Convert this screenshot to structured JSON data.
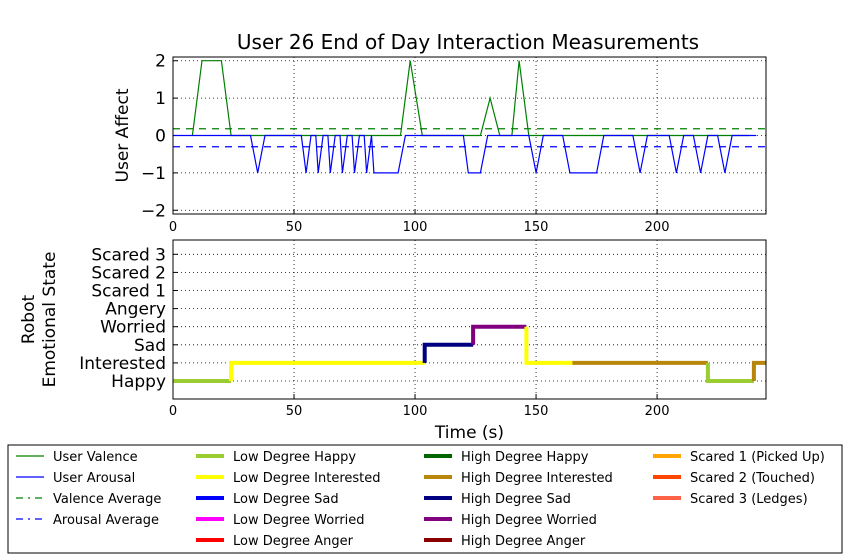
{
  "chart_data": [
    {
      "type": "line",
      "title": "User 26 End of Day Interaction Measurements",
      "ylabel": "User Affect",
      "xlim": [
        0,
        245
      ],
      "ylim": [
        -2.1,
        2.1
      ],
      "xticks": [
        0,
        50,
        100,
        150,
        200
      ],
      "yticks": [
        2,
        1,
        0,
        -1,
        -2
      ],
      "grid": true,
      "series": [
        {
          "name": "User Valence",
          "color": "#008000",
          "style": "solid",
          "points": [
            [
              8,
              0
            ],
            [
              12,
              2
            ],
            [
              20,
              2
            ],
            [
              24,
              0
            ],
            [
              94,
              0
            ],
            [
              98,
              2
            ],
            [
              103,
              0
            ],
            [
              127,
              0
            ],
            [
              131,
              1
            ],
            [
              135,
              0
            ],
            [
              140,
              0
            ],
            [
              143,
              2
            ],
            [
              147,
              0
            ],
            [
              238,
              0
            ]
          ]
        },
        {
          "name": "User Arousal",
          "color": "#0000ff",
          "style": "solid",
          "points": [
            [
              0,
              0
            ],
            [
              32,
              0
            ],
            [
              35,
              -1
            ],
            [
              38,
              0
            ],
            [
              53,
              0
            ],
            [
              55,
              -1
            ],
            [
              57,
              0
            ],
            [
              59,
              0
            ],
            [
              60,
              -1
            ],
            [
              62,
              0
            ],
            [
              64,
              0
            ],
            [
              65,
              -1
            ],
            [
              67,
              0
            ],
            [
              69,
              0
            ],
            [
              70,
              -1
            ],
            [
              72,
              0
            ],
            [
              74,
              0
            ],
            [
              75,
              -1
            ],
            [
              77,
              0
            ],
            [
              79,
              0
            ],
            [
              80,
              -1
            ],
            [
              82,
              0
            ],
            [
              83,
              -1
            ],
            [
              93,
              -1
            ],
            [
              96,
              0
            ],
            [
              120,
              0
            ],
            [
              122,
              -1
            ],
            [
              127,
              -1
            ],
            [
              130,
              0
            ],
            [
              147,
              0
            ],
            [
              150,
              -1
            ],
            [
              153,
              0
            ],
            [
              161,
              0
            ],
            [
              164,
              -1
            ],
            [
              175,
              -1
            ],
            [
              178,
              0
            ],
            [
              190,
              0
            ],
            [
              193,
              -1
            ],
            [
              196,
              0
            ],
            [
              205,
              0
            ],
            [
              208,
              -1
            ],
            [
              211,
              0
            ],
            [
              215,
              0
            ],
            [
              218,
              -1
            ],
            [
              221,
              0
            ],
            [
              225,
              0
            ],
            [
              228,
              -1
            ],
            [
              231,
              0
            ],
            [
              241,
              0
            ]
          ]
        },
        {
          "name": "Valence Average",
          "color": "#008000",
          "style": "dashed",
          "value": 0.18
        },
        {
          "name": "Arousal Average",
          "color": "#0000ff",
          "style": "dashed",
          "value": -0.3
        }
      ]
    },
    {
      "type": "line",
      "ylabel": "Robot\nEmotional State",
      "xlabel": "Time (s)",
      "xlim": [
        0,
        245
      ],
      "xticks": [
        0,
        50,
        100,
        150,
        200
      ],
      "categories": [
        "Happy",
        "Interested",
        "Sad",
        "Worried",
        "Angery",
        "Scared 1",
        "Scared 2",
        "Scared 3"
      ],
      "grid": true,
      "segments": [
        {
          "name": "Low Degree Happy",
          "color": "#9acd32",
          "points": [
            [
              0,
              0
            ],
            [
              24,
              0
            ]
          ]
        },
        {
          "name": "Low Degree Interested",
          "color": "#ffff00",
          "points": [
            [
              24,
              0
            ],
            [
              24,
              1
            ],
            [
              104,
              1
            ]
          ]
        },
        {
          "name": "High Degree Sad",
          "color": "#000080",
          "points": [
            [
              104,
              1
            ],
            [
              104,
              2
            ],
            [
              124,
              2
            ]
          ]
        },
        {
          "name": "High Degree Worried",
          "color": "#800080",
          "points": [
            [
              124,
              2
            ],
            [
              124,
              3
            ],
            [
              146,
              3
            ]
          ]
        },
        {
          "name": "Low Degree Interested",
          "color": "#ffff00",
          "points": [
            [
              146,
              3
            ],
            [
              146,
              1
            ],
            [
              165,
              1
            ]
          ]
        },
        {
          "name": "High Degree Interested",
          "color": "#b8860b",
          "points": [
            [
              165,
              1
            ],
            [
              221,
              1
            ]
          ]
        },
        {
          "name": "Low Degree Happy",
          "color": "#9acd32",
          "points": [
            [
              221,
              1
            ],
            [
              221,
              0
            ],
            [
              240,
              0
            ]
          ]
        },
        {
          "name": "High Degree Interested",
          "color": "#b8860b",
          "points": [
            [
              240,
              0
            ],
            [
              240,
              1
            ],
            [
              245,
              1
            ]
          ]
        }
      ]
    }
  ],
  "legend": {
    "placement": "bottom",
    "columns": [
      [
        {
          "label": "User Valence",
          "color": "#008000",
          "style": "thin"
        },
        {
          "label": "User Arousal",
          "color": "#0000ff",
          "style": "thin"
        },
        {
          "label": "Valence Average",
          "color": "#008000",
          "style": "dashdot"
        },
        {
          "label": "Arousal Average",
          "color": "#0000ff",
          "style": "dashdot"
        }
      ],
      [
        {
          "label": "Low Degree Happy",
          "color": "#9acd32",
          "style": "thick"
        },
        {
          "label": "Low Degree Interested",
          "color": "#ffff00",
          "style": "thick"
        },
        {
          "label": "Low Degree Sad",
          "color": "#0000ff",
          "style": "thick"
        },
        {
          "label": "Low Degree Worried",
          "color": "#ff00ff",
          "style": "thick"
        },
        {
          "label": "Low Degree Anger",
          "color": "#ff0000",
          "style": "thick"
        }
      ],
      [
        {
          "label": "High Degree Happy",
          "color": "#006400",
          "style": "thick"
        },
        {
          "label": "High Degree Interested",
          "color": "#b8860b",
          "style": "thick"
        },
        {
          "label": "High Degree Sad",
          "color": "#000080",
          "style": "thick"
        },
        {
          "label": "High Degree Worried",
          "color": "#800080",
          "style": "thick"
        },
        {
          "label": "High Degree Anger",
          "color": "#8b0000",
          "style": "thick"
        }
      ],
      [
        {
          "label": "Scared 1 (Picked Up)",
          "color": "#ffa500",
          "style": "thick"
        },
        {
          "label": "Scared 2 (Touched)",
          "color": "#ff4500",
          "style": "thick"
        },
        {
          "label": "Scared 3 (Ledges)",
          "color": "#ff6347",
          "style": "thick"
        }
      ]
    ]
  }
}
